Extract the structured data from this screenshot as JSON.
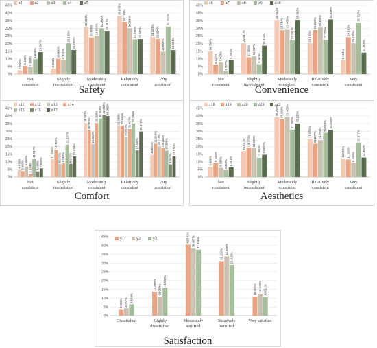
{
  "colors": {
    "c1": "#f2c9b4",
    "c2": "#e8a585",
    "c3": "#c9c2b0",
    "c4": "#a5bd9c",
    "c5": "#5b6b50",
    "c6": "#7c8a6c",
    "c7": "#5c6850"
  },
  "chart_data": [
    {
      "type": "bar",
      "title": "Safety",
      "categories": [
        "Not consistent",
        "Slightly inconsistent",
        "Moderately consistent",
        "Relatively consistent",
        "Very consistent"
      ],
      "ylim": [
        0,
        45
      ],
      "yticks": [
        "0%",
        "5%",
        "10%",
        "15%",
        "20%",
        "25%",
        "30%",
        "35%",
        "40%",
        "45%"
      ],
      "legend": "top-left",
      "series": [
        {
          "name": "z1",
          "values": [
            2.568,
            3.556,
            30.583,
            38.076,
            24.324
          ],
          "labels": [
            "2.568%",
            "3.556%",
            "30.583%",
            "38.076%",
            "24.324%"
          ]
        },
        {
          "name": "z2",
          "values": [
            5.404,
            10.0,
            24.0,
            34.159,
            23.0
          ],
          "labels": [
            "5.404%",
            "10.000%",
            "24.000%",
            "34.159%",
            "23.000%"
          ]
        },
        {
          "name": "z3",
          "values": [
            4.694,
            9.331,
            24.895,
            30.0,
            14.653
          ],
          "labels": [
            "4.694%",
            "9.331%",
            "24.895%",
            "30.000%",
            "14.653%"
          ]
        },
        {
          "name": "z4",
          "values": [
            9.808,
            20.199,
            30.0,
            22.766,
            31.152
          ],
          "labels": [
            "9.808%",
            "20.199%",
            "30.000%",
            "22.766%",
            "31.152%"
          ]
        },
        {
          "name": "z5",
          "values": [
            14.367,
            15.789,
            28.307,
            22.902,
            15.694
          ],
          "labels": [
            "14.367%",
            "15.789%",
            "28.307%",
            "22.902%",
            "15.694%"
          ]
        }
      ]
    },
    {
      "type": "bar",
      "title": "Convenience",
      "categories": [
        "Not consistent",
        "Slightly inconsistent",
        "Moderately consistent",
        "Relatively consistent",
        "Very consistent"
      ],
      "ylim": [
        0,
        45
      ],
      "yticks": [
        "0%",
        "5%",
        "10%",
        "15%",
        "20%",
        "25%",
        "30%",
        "35%",
        "40%",
        "45%"
      ],
      "legend": "top-left",
      "series": [
        {
          "name": "z6",
          "values": [
            14.794,
            20.341,
            35.502,
            20.199,
            9.104
          ],
          "labels": [
            "14.794%",
            "20.341%",
            "35.502%",
            "20.199%",
            "9.104%"
          ]
        },
        {
          "name": "z7",
          "values": [
            6.117,
            11.009,
            28.734,
            28.815,
            24.182
          ],
          "labels": [
            "6.117%",
            "11.009%",
            "28.734%",
            "28.815%",
            "24.182%"
          ]
        },
        {
          "name": "z8",
          "values": [
            7.603,
            11.807,
            29.485,
            30.468,
            20.199
          ],
          "labels": [
            "7.603%",
            "11.807%",
            "29.485%",
            "30.468%",
            "20.199%"
          ]
        },
        {
          "name": "z9",
          "values": [
            1.707,
            6.543,
            22.191,
            22.475,
            33.713
          ],
          "labels": [
            "1.707%",
            "6.543%",
            "22.191%",
            "22.475%",
            "33.713%"
          ]
        },
        {
          "name": "z10",
          "values": [
            9.246,
            18.634,
            35.502,
            35.846,
            14.083
          ],
          "labels": [
            "9.246%",
            "18.634%",
            "35.502%",
            "35.846%",
            "14.083%"
          ]
        }
      ]
    },
    {
      "type": "bar",
      "title": "Comfort",
      "categories": [
        "Not consistent",
        "Slightly inconsistent",
        "Moderately consistent",
        "Relatively consistent",
        "Very consistent"
      ],
      "ylim": [
        0,
        45
      ],
      "yticks": [
        "0%",
        "5%",
        "10%",
        "15%",
        "20%",
        "25%",
        "30%",
        "35%",
        "40%",
        "45%"
      ],
      "legend": "top-left",
      "series": [
        {
          "name": "z11",
          "values": [
            4.83,
            11.664,
            35.502,
            33.286,
            14.651
          ],
          "labels": [
            "4.830%",
            "11.664%",
            "35.502%",
            "33.286%",
            "14.651%"
          ]
        },
        {
          "name": "z12",
          "values": [
            3.983,
            17.785,
            30.583,
            33.846,
            21.919
          ],
          "labels": [
            "3.983%",
            "17.785%",
            "30.583%",
            "33.846%",
            "21.919%"
          ]
        },
        {
          "name": "z13",
          "values": [
            6.859,
            8.672,
            21.663,
            26.31,
            20.118
          ],
          "labels": [
            "6.859%",
            "8.672%",
            "21.663%",
            "26.310%",
            "20.118%"
          ]
        },
        {
          "name": "z14",
          "values": [
            2.134,
            9.067,
            35.398,
            31.437,
            19.268
          ],
          "labels": [
            "2.134%",
            "9.067%",
            "35.398%",
            "31.437%",
            "19.268%"
          ]
        },
        {
          "name": "z15",
          "values": [
            11.949,
            21.337,
            38.398,
            35.285,
            17.305
          ],
          "labels": [
            "11.949%",
            "21.337%",
            "38.398%",
            "35.285%",
            "17.305%"
          ]
        },
        {
          "name": "z16",
          "values": [
            3.698,
            8.672,
            40.883,
            17.49,
            8.353
          ],
          "labels": [
            "3.698%",
            "8.672%",
            "40.883%",
            "17.490%",
            "8.353%"
          ]
        },
        {
          "name": "z17",
          "values": [
            5.698,
            13.514,
            40.0,
            29.872,
            13.571
          ],
          "labels": [
            "5.698%",
            "13.514%",
            "40.000%",
            "29.872%",
            "13.571%"
          ]
        }
      ]
    },
    {
      "type": "bar",
      "title": "Aesthetics",
      "categories": [
        "Not consistent",
        "Slightly inconsistent",
        "Moderately consistent",
        "Relatively consistent",
        "Very consistent"
      ],
      "ylim": [
        0,
        45
      ],
      "yticks": [
        "0%",
        "5%",
        "10%",
        "15%",
        "20%",
        "25%",
        "30%",
        "35%",
        "40%",
        "45%"
      ],
      "legend": "top-left",
      "series": [
        {
          "name": "z18",
          "values": [
            6.686,
            16.927,
            39.269,
            25.056,
            12.091
          ],
          "labels": [
            "6.686%",
            "16.927%",
            "39.269%",
            "25.056%",
            "12.091%"
          ]
        },
        {
          "name": "z19",
          "values": [
            9.246,
            19.373,
            37.98,
            21.807,
            11.52
          ],
          "labels": [
            "9.246%",
            "19.373%",
            "37.980%",
            "21.807%",
            "11.520%"
          ]
        },
        {
          "name": "z20",
          "values": [
            6.108,
            18.939,
            39.403,
            24.324,
            9.246
          ],
          "labels": [
            "6.108%",
            "18.939%",
            "39.403%",
            "24.324%",
            "9.246%"
          ]
        },
        {
          "name": "z21",
          "values": [
            4.452,
            12.66,
            31.152,
            29.01,
            22.617
          ],
          "labels": [
            "4.452%",
            "12.660%",
            "31.152%",
            "29.010%",
            "22.617%"
          ]
        },
        {
          "name": "z22",
          "values": [
            6.401,
            14.651,
            35.135,
            31.01,
            12.802
          ],
          "labels": [
            "6.401%",
            "14.651%",
            "35.135%",
            "31.010%",
            "12.802%"
          ]
        }
      ]
    },
    {
      "type": "bar",
      "title": "Satisfaction",
      "categories": [
        "Dissatisfied",
        "Slightly dissatisfied",
        "Moderately satisfied",
        "Relatively satisfied",
        "Very satisfied"
      ],
      "ylim": [
        0,
        45
      ],
      "yticks": [
        "0%",
        "5%",
        "10%",
        "15%",
        "20%",
        "25%",
        "30%",
        "35%",
        "40%",
        "45%"
      ],
      "legend": "top-left",
      "series": [
        {
          "name": "y1",
          "values": [
            3.698,
            13.656,
            40.541,
            31.152,
            10.953
          ],
          "labels": [
            "3.698%",
            "13.656%",
            "40.541%",
            "31.152%",
            "10.953%"
          ]
        },
        {
          "name": "y2",
          "values": [
            4.267,
            10.953,
            38.407,
            33.855,
            12.518
          ],
          "labels": [
            "4.267%",
            "10.953%",
            "38.407%",
            "33.855%",
            "12.518%"
          ]
        },
        {
          "name": "y3",
          "values": [
            6.543,
            15.932,
            37.696,
            29.018,
            10.811
          ],
          "labels": [
            "6.543%",
            "15.932%",
            "37.696%",
            "29.018%",
            "10.811%"
          ]
        }
      ]
    }
  ]
}
